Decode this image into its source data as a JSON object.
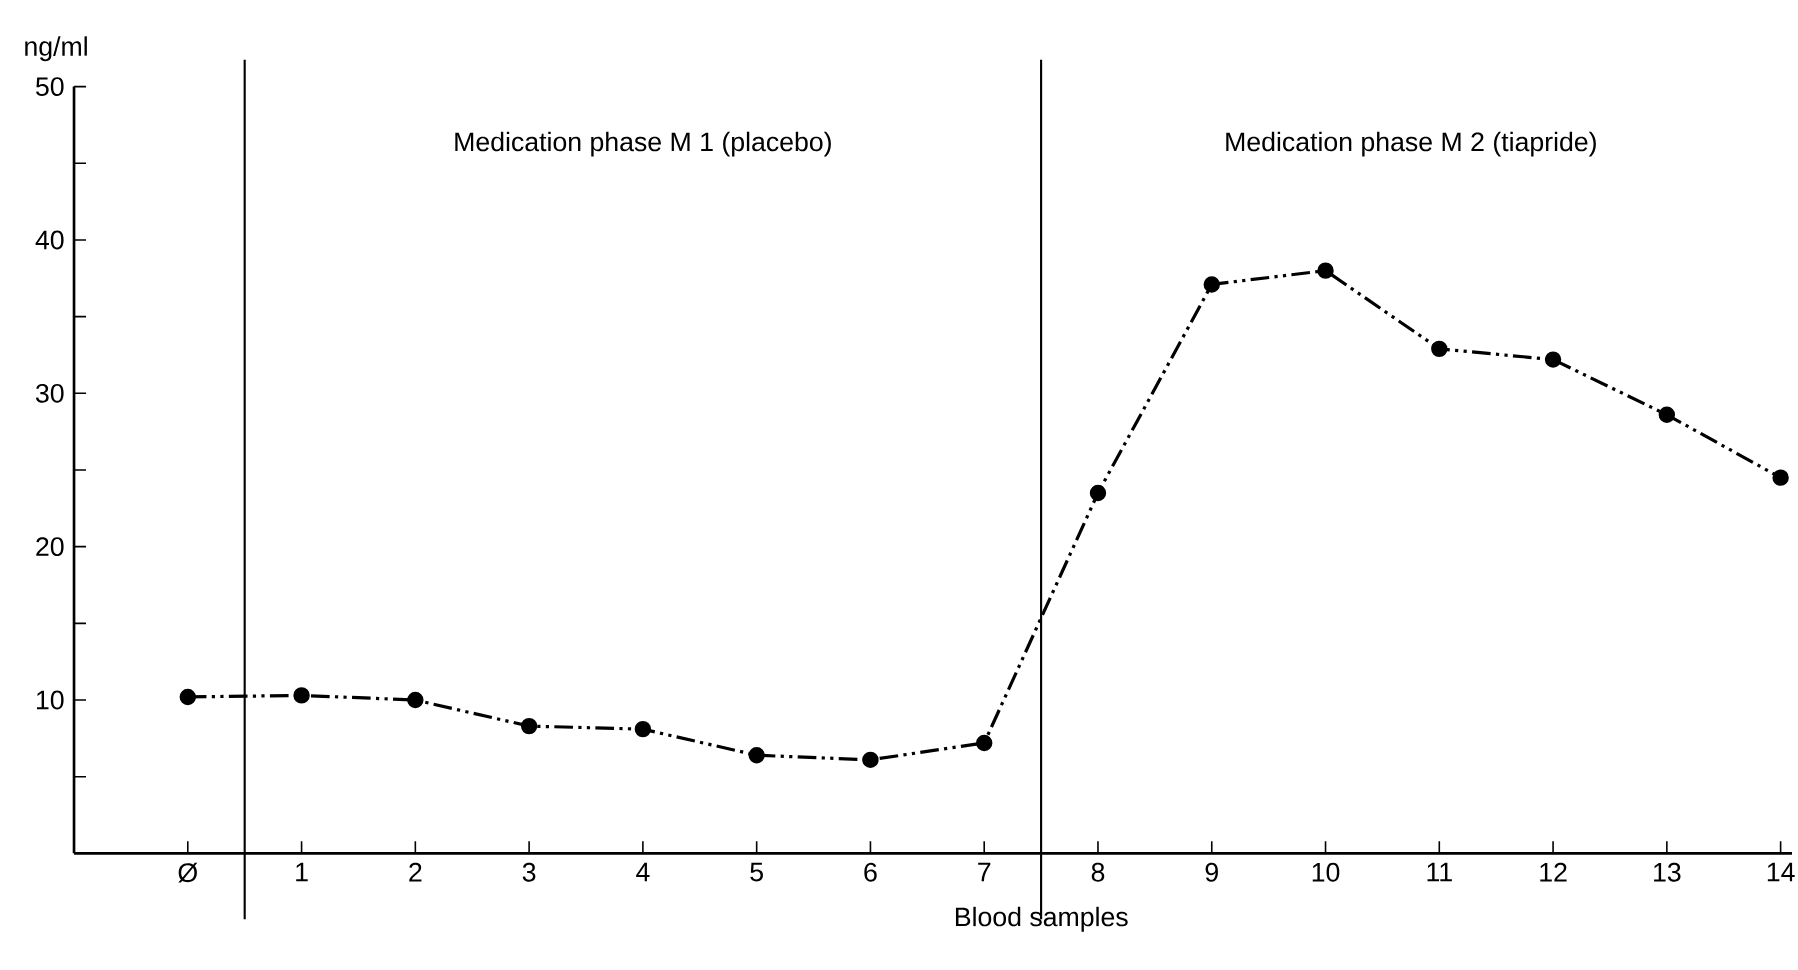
{
  "chart_data": {
    "type": "line",
    "xlabel": "Blood samples",
    "ylabel": "ng/ml",
    "categories": [
      "Ø",
      "1",
      "2",
      "3",
      "4",
      "5",
      "6",
      "7",
      "8",
      "9",
      "10",
      "11",
      "12",
      "13",
      "14"
    ],
    "series": [
      {
        "color": "#000000",
        "values": [
          10.2,
          10.3,
          10.0,
          8.3,
          8.1,
          6.4,
          6.1,
          7.2,
          23.5,
          37.1,
          38.0,
          32.9,
          32.2,
          28.6,
          24.5
        ]
      }
    ],
    "ylim": [
      0,
      50
    ],
    "yticks": [
      {
        "value": 5,
        "label": null
      },
      10,
      {
        "value": 15,
        "label": null
      },
      20,
      {
        "value": 25,
        "label": null
      },
      30,
      {
        "value": 35,
        "label": null
      },
      40,
      {
        "value": 45,
        "label": null
      },
      50
    ],
    "marker": "circle",
    "line_style": "dashdotdotted",
    "annotations": [
      "Medication phase M 1 (placebo)",
      "Medication phase M 2 (tiapride)"
    ]
  }
}
